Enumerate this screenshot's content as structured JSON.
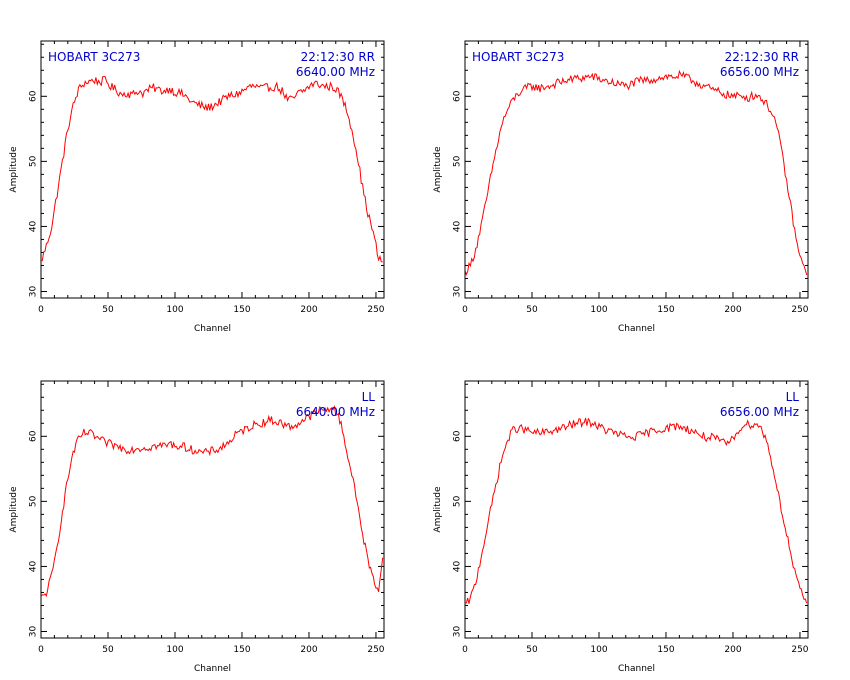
{
  "chart_data": [
    {
      "type": "line",
      "source": "HOBART 3C273",
      "time": "22:12:30",
      "pol": "RR",
      "freq": "6640.00 MHz",
      "xlabel": "Channel",
      "ylabel": "Amplitude",
      "xlim": [
        0,
        256
      ],
      "ylim": [
        29,
        68.5
      ],
      "xticks": [
        0,
        50,
        100,
        150,
        200,
        250
      ],
      "yticks": [
        30,
        40,
        50,
        60
      ],
      "grid": false,
      "color": "#ff0000",
      "series": [
        {
          "x": [
            0,
            4,
            8,
            12,
            16,
            20,
            24,
            28,
            32,
            36,
            40,
            44,
            48,
            52,
            56,
            60,
            64,
            68,
            72,
            76,
            80,
            84,
            88,
            92,
            96,
            100,
            104,
            108,
            112,
            116,
            120,
            124,
            128,
            132,
            136,
            140,
            144,
            148,
            152,
            156,
            160,
            164,
            168,
            172,
            176,
            180,
            184,
            188,
            192,
            196,
            200,
            204,
            208,
            212,
            216,
            220,
            224,
            228,
            232,
            236,
            240,
            244,
            248,
            252,
            255
          ],
          "y": [
            34.5,
            37,
            40,
            45,
            50,
            55,
            58.5,
            61,
            62,
            62.3,
            62.5,
            62.2,
            62.5,
            61.5,
            61,
            60.3,
            60.5,
            60.2,
            60.8,
            60.5,
            61,
            61.3,
            61,
            60.8,
            61.2,
            60.6,
            60.5,
            60,
            59.2,
            58.8,
            58.5,
            58.2,
            58.5,
            59,
            59.5,
            60,
            60.2,
            60.5,
            61,
            61.5,
            61.5,
            61.2,
            61.3,
            61.4,
            61.5,
            60.8,
            59.5,
            59.5,
            60.5,
            60.8,
            61.5,
            62,
            61.8,
            61.5,
            61.5,
            61.2,
            60,
            58,
            55,
            51,
            46,
            42,
            39,
            35,
            34.5
          ]
        }
      ]
    },
    {
      "type": "line",
      "source": "HOBART 3C273",
      "time": "22:12:30",
      "pol": "RR",
      "freq": "6656.00 MHz",
      "xlabel": "Channel",
      "ylabel": "Amplitude",
      "xlim": [
        0,
        256
      ],
      "ylim": [
        29,
        68.5
      ],
      "xticks": [
        0,
        50,
        100,
        150,
        200,
        250
      ],
      "yticks": [
        30,
        40,
        50,
        60
      ],
      "grid": false,
      "color": "#ff0000",
      "series": [
        {
          "x": [
            0,
            4,
            8,
            12,
            16,
            20,
            24,
            28,
            32,
            36,
            40,
            44,
            48,
            52,
            56,
            60,
            64,
            68,
            72,
            76,
            80,
            84,
            88,
            92,
            96,
            100,
            104,
            108,
            112,
            116,
            120,
            124,
            128,
            132,
            136,
            140,
            144,
            148,
            152,
            156,
            160,
            164,
            168,
            172,
            176,
            180,
            184,
            188,
            192,
            196,
            200,
            204,
            208,
            212,
            216,
            220,
            224,
            228,
            232,
            236,
            240,
            244,
            248,
            252,
            255
          ],
          "y": [
            33,
            34,
            36.5,
            40,
            44,
            48.5,
            52.5,
            56,
            58,
            59.5,
            60.5,
            61,
            61.5,
            61.5,
            61.2,
            61.5,
            61.6,
            62,
            62.2,
            62.5,
            62.6,
            62.8,
            62.8,
            63,
            63,
            62.6,
            62.5,
            62.2,
            62,
            61.8,
            61.6,
            61.8,
            62.2,
            62.5,
            62.4,
            62.6,
            62.8,
            63,
            63,
            63,
            63.2,
            63,
            62.6,
            62.2,
            61.8,
            61.5,
            61,
            60.8,
            60.5,
            60.2,
            60,
            60,
            60,
            59.8,
            60.2,
            60,
            59,
            58,
            56,
            52,
            47,
            42,
            37,
            34,
            33
          ]
        }
      ]
    },
    {
      "type": "line",
      "source": "",
      "time": "",
      "pol": "LL",
      "freq": "6640.00 MHz",
      "xlabel": "Channel",
      "ylabel": "Amplitude",
      "xlim": [
        0,
        256
      ],
      "ylim": [
        29,
        68.5
      ],
      "xticks": [
        0,
        50,
        100,
        150,
        200,
        250
      ],
      "yticks": [
        30,
        40,
        50,
        60
      ],
      "grid": false,
      "color": "#ff0000",
      "series": [
        {
          "x": [
            0,
            4,
            8,
            12,
            16,
            20,
            24,
            28,
            32,
            36,
            40,
            44,
            48,
            52,
            56,
            60,
            64,
            68,
            72,
            76,
            80,
            84,
            88,
            92,
            96,
            100,
            104,
            108,
            112,
            116,
            120,
            124,
            128,
            132,
            136,
            140,
            144,
            148,
            152,
            156,
            160,
            164,
            168,
            172,
            176,
            180,
            184,
            188,
            192,
            196,
            200,
            204,
            208,
            212,
            216,
            220,
            224,
            228,
            232,
            236,
            240,
            244,
            248,
            252,
            255
          ],
          "y": [
            35,
            36,
            38.5,
            43,
            48.5,
            53.5,
            57.5,
            59.5,
            60.5,
            60.5,
            60,
            59.5,
            59,
            58.8,
            58.5,
            58.2,
            58,
            58,
            58.2,
            58.2,
            58.3,
            58.5,
            58.5,
            58.6,
            58.8,
            58.6,
            58.5,
            58.3,
            58,
            57.8,
            57.5,
            57.5,
            57.8,
            58,
            58.5,
            59,
            60,
            60.5,
            61,
            61.5,
            61.8,
            62,
            62.3,
            62.5,
            62.2,
            62,
            61.5,
            61.5,
            62,
            62.5,
            63,
            63.5,
            64,
            64,
            64.5,
            63.8,
            62,
            58,
            54,
            50,
            45,
            41,
            38,
            36.5,
            41
          ]
        }
      ]
    },
    {
      "type": "line",
      "source": "",
      "time": "",
      "pol": "LL",
      "freq": "6656.00 MHz",
      "xlabel": "Channel",
      "ylabel": "Amplitude",
      "xlim": [
        0,
        256
      ],
      "ylim": [
        29,
        68.5
      ],
      "xticks": [
        0,
        50,
        100,
        150,
        200,
        250
      ],
      "yticks": [
        30,
        40,
        50,
        60
      ],
      "grid": false,
      "color": "#ff0000",
      "series": [
        {
          "x": [
            0,
            4,
            8,
            12,
            16,
            20,
            24,
            28,
            32,
            36,
            40,
            44,
            48,
            52,
            56,
            60,
            64,
            68,
            72,
            76,
            80,
            84,
            88,
            92,
            96,
            100,
            104,
            108,
            112,
            116,
            120,
            124,
            128,
            132,
            136,
            140,
            144,
            148,
            152,
            156,
            160,
            164,
            168,
            172,
            176,
            180,
            184,
            188,
            192,
            196,
            200,
            204,
            208,
            212,
            216,
            220,
            224,
            228,
            232,
            236,
            240,
            244,
            248,
            252,
            255
          ],
          "y": [
            34,
            35,
            37.5,
            41.5,
            45.5,
            49.5,
            53.5,
            57,
            59.5,
            61,
            61.3,
            61,
            60.8,
            60.5,
            60.5,
            60.6,
            60.8,
            61,
            61.2,
            61.5,
            61.8,
            62,
            62.2,
            62.2,
            62,
            61.5,
            61,
            60.8,
            60.5,
            60.2,
            60,
            59.8,
            60,
            60.2,
            60.5,
            60.8,
            61,
            61.2,
            61.3,
            61.5,
            61.6,
            61.2,
            61,
            60.6,
            60.2,
            59.8,
            59.8,
            59.5,
            59,
            59,
            59.5,
            61,
            61.8,
            61.8,
            62,
            61.5,
            60,
            57,
            53,
            49,
            45,
            41,
            37.5,
            35.5,
            34.5
          ]
        }
      ]
    }
  ]
}
